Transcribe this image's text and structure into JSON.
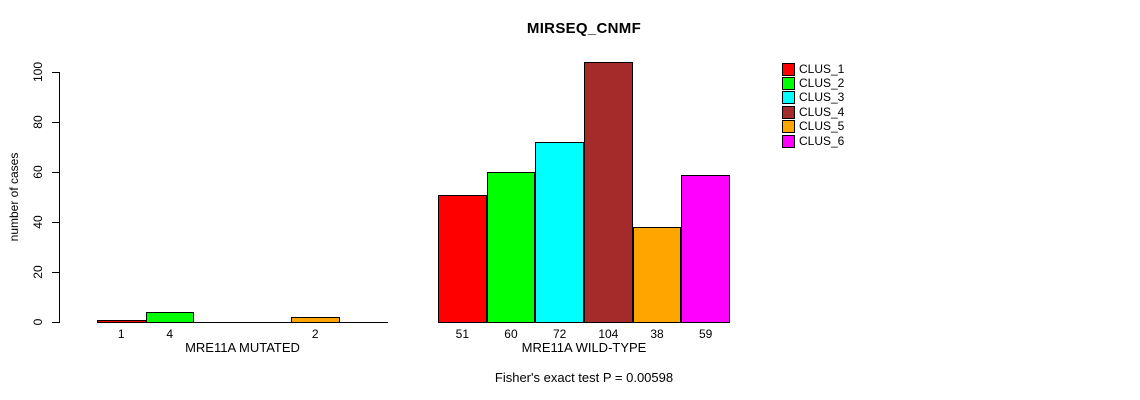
{
  "chart_data": {
    "type": "bar",
    "title": "MIRSEQ_CNMF",
    "ylabel": "number of cases",
    "ylim": [
      0,
      100
    ],
    "yticks": [
      "0",
      "20",
      "40",
      "60",
      "80",
      "100"
    ],
    "grid": false,
    "legend_position": "top-right",
    "legend": [
      {
        "label": "CLUS_1",
        "color": "#FF0000"
      },
      {
        "label": "CLUS_2",
        "color": "#00FF00"
      },
      {
        "label": "CLUS_3",
        "color": "#00FFFF"
      },
      {
        "label": "CLUS_4",
        "color": "#A52A2A"
      },
      {
        "label": "CLUS_5",
        "color": "#FFA500"
      },
      {
        "label": "CLUS_6",
        "color": "#FF00FF"
      }
    ],
    "groups": [
      {
        "label": "MRE11A MUTATED",
        "values": [
          1,
          4,
          0,
          0,
          2,
          0
        ]
      },
      {
        "label": "MRE11A WILD-TYPE",
        "values": [
          51,
          60,
          72,
          104,
          38,
          59
        ]
      }
    ],
    "annotation": "Fisher's exact test P = 0.00598"
  }
}
